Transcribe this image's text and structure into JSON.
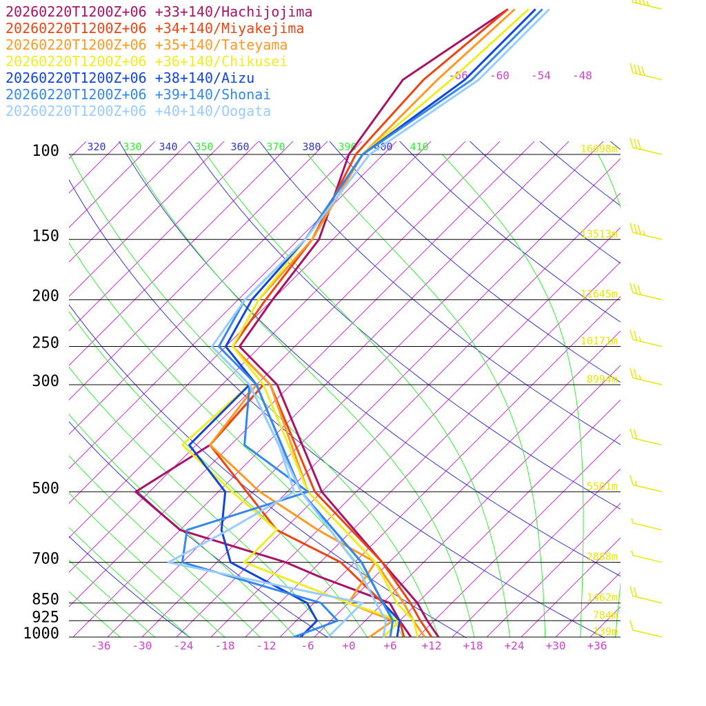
{
  "chart_data": {
    "type": "line",
    "chart_kind": "skew-T log-P diagram",
    "colors": {
      "isobar": "#000000",
      "isotherm": "#cc33cc",
      "dry_adiabat": "#3333cc",
      "moist_adiabat": "#33ee33",
      "height_label": "#e8e800",
      "wind_barb": "#e8e800",
      "temp_axis_label": "#cc44cc",
      "pressure_label": "#000000"
    },
    "pressure_levels": [
      100,
      150,
      200,
      250,
      300,
      500,
      700,
      850,
      925,
      1000
    ],
    "pressure_labels": [
      "100",
      "150",
      "200",
      "250",
      "300",
      "500",
      "700",
      "850",
      "925",
      "1000"
    ],
    "height_labels": [
      "16098m",
      "13513m",
      "11645m",
      "10171m",
      "8994m",
      "5501m",
      "2888m",
      "1462m",
      "784m",
      "139m"
    ],
    "temperature_ticks": [
      "-36",
      "-30",
      "-24",
      "-18",
      "-12",
      "-6",
      "+0",
      "+6",
      "+12",
      "+18",
      "+24",
      "+30",
      "+36"
    ],
    "upper_temperature_labels": [
      "-66",
      "-60",
      "-54",
      "-48"
    ],
    "theta_labels": [
      "320",
      "330",
      "340",
      "350",
      "360",
      "370",
      "380",
      "390",
      "400",
      "410"
    ],
    "series": [
      {
        "name": "20260220T1200Z+06 +33+140/Hachijojima",
        "color": "#aa1166",
        "temperature_c": [
          [
            1000,
            13
          ],
          [
            925,
            9
          ],
          [
            850,
            5
          ],
          [
            700,
            -6
          ],
          [
            500,
            -25
          ],
          [
            300,
            -47
          ],
          [
            250,
            -58
          ],
          [
            200,
            -60
          ],
          [
            150,
            -62
          ],
          [
            100,
            -70
          ],
          [
            70,
            -73
          ],
          [
            50,
            -68
          ]
        ],
        "dewpoint_c": [
          [
            1000,
            9
          ],
          [
            925,
            5
          ],
          [
            850,
            1
          ],
          [
            750,
            -13
          ],
          [
            700,
            -20
          ],
          [
            600,
            -40
          ],
          [
            500,
            -52
          ],
          [
            400,
            -48
          ],
          [
            300,
            -49
          ]
        ]
      },
      {
        "name": "20260220T1200Z+06 +34+140/Miyakejima",
        "color": "#ee4411",
        "temperature_c": [
          [
            1000,
            12
          ],
          [
            925,
            8
          ],
          [
            850,
            4
          ],
          [
            700,
            -6
          ],
          [
            500,
            -26
          ],
          [
            300,
            -48
          ],
          [
            250,
            -59
          ],
          [
            200,
            -61
          ],
          [
            150,
            -63
          ],
          [
            100,
            -69
          ],
          [
            70,
            -70
          ],
          [
            50,
            -68
          ]
        ],
        "dewpoint_c": [
          [
            1000,
            8
          ],
          [
            925,
            5
          ],
          [
            850,
            0
          ],
          [
            700,
            -12
          ],
          [
            600,
            -26
          ],
          [
            400,
            -48
          ],
          [
            300,
            -49
          ]
        ]
      },
      {
        "name": "20260220T1200Z+06 +35+140/Tateyama",
        "color": "#ff9922",
        "temperature_c": [
          [
            1000,
            11
          ],
          [
            925,
            7
          ],
          [
            850,
            3
          ],
          [
            700,
            -7
          ],
          [
            500,
            -27
          ],
          [
            300,
            -48
          ],
          [
            250,
            -59
          ],
          [
            200,
            -62
          ],
          [
            150,
            -63
          ],
          [
            100,
            -68
          ],
          [
            70,
            -68
          ],
          [
            50,
            -67
          ]
        ],
        "dewpoint_c": [
          [
            1000,
            3
          ],
          [
            925,
            4
          ],
          [
            850,
            -5
          ],
          [
            700,
            -7
          ],
          [
            600,
            -20
          ],
          [
            500,
            -34
          ],
          [
            400,
            -48
          ],
          [
            300,
            -50
          ]
        ]
      },
      {
        "name": "20260220T1200Z+06 +36+140/Chikusei",
        "color": "#eeee22",
        "temperature_c": [
          [
            1000,
            10
          ],
          [
            925,
            7
          ],
          [
            850,
            2
          ],
          [
            700,
            -7
          ],
          [
            500,
            -27
          ],
          [
            300,
            -49
          ],
          [
            250,
            -59
          ],
          [
            200,
            -62
          ],
          [
            150,
            -64
          ],
          [
            100,
            -68
          ],
          [
            70,
            -66
          ],
          [
            50,
            -65
          ]
        ],
        "dewpoint_c": [
          [
            1000,
            5
          ],
          [
            925,
            5
          ],
          [
            850,
            -5
          ],
          [
            700,
            -26
          ],
          [
            600,
            -26
          ],
          [
            500,
            -38
          ],
          [
            400,
            -52
          ],
          [
            300,
            -51
          ]
        ]
      },
      {
        "name": "20260220T1200Z+06 +38+140/Aizu",
        "color": "#1144dd",
        "temperature_c": [
          [
            1000,
            7
          ],
          [
            925,
            5
          ],
          [
            850,
            0
          ],
          [
            700,
            -9
          ],
          [
            500,
            -28
          ],
          [
            300,
            -50
          ],
          [
            250,
            -60
          ],
          [
            200,
            -63
          ],
          [
            150,
            -64
          ],
          [
            100,
            -68
          ],
          [
            70,
            -64
          ],
          [
            50,
            -64
          ]
        ],
        "dewpoint_c": [
          [
            1000,
            -7
          ],
          [
            925,
            -7
          ],
          [
            850,
            -11
          ],
          [
            700,
            -28
          ],
          [
            600,
            -34
          ],
          [
            500,
            -39
          ],
          [
            400,
            -51
          ],
          [
            300,
            -51
          ]
        ]
      },
      {
        "name": "20260220T1200Z+06 +39+140/Shonai",
        "color": "#3388ee",
        "temperature_c": [
          [
            1000,
            6
          ],
          [
            925,
            4
          ],
          [
            850,
            0
          ],
          [
            700,
            -9
          ],
          [
            500,
            -28
          ],
          [
            300,
            -50
          ],
          [
            250,
            -61
          ],
          [
            200,
            -64
          ],
          [
            150,
            -64
          ],
          [
            100,
            -68
          ],
          [
            70,
            -63
          ],
          [
            50,
            -63
          ]
        ],
        "dewpoint_c": [
          [
            1000,
            -8
          ],
          [
            925,
            -4
          ],
          [
            850,
            -9
          ],
          [
            700,
            -35
          ],
          [
            600,
            -39
          ],
          [
            500,
            -27
          ],
          [
            400,
            -43
          ],
          [
            300,
            -51
          ]
        ]
      },
      {
        "name": "20260220T1200Z+06 +40+140/Oogata",
        "color": "#99ccff",
        "temperature_c": [
          [
            1000,
            5
          ],
          [
            925,
            3
          ],
          [
            850,
            -1
          ],
          [
            700,
            -10
          ],
          [
            500,
            -28
          ],
          [
            300,
            -51
          ],
          [
            250,
            -62
          ],
          [
            200,
            -64
          ],
          [
            150,
            -64
          ],
          [
            100,
            -67
          ],
          [
            70,
            -62
          ],
          [
            50,
            -62
          ]
        ],
        "dewpoint_c": [
          [
            1000,
            -3
          ],
          [
            925,
            -3
          ],
          [
            850,
            -3
          ],
          [
            700,
            -37
          ],
          [
            600,
            -33
          ],
          [
            500,
            -29
          ],
          [
            400,
            -38
          ],
          [
            300,
            -51
          ]
        ]
      }
    ],
    "wind_barbs": [
      {
        "pressure": 50,
        "speed_kt": 45
      },
      {
        "pressure": 70,
        "speed_kt": 40
      },
      {
        "pressure": 100,
        "speed_kt": 30
      },
      {
        "pressure": 150,
        "speed_kt": 35
      },
      {
        "pressure": 200,
        "speed_kt": 30
      },
      {
        "pressure": 250,
        "speed_kt": 25
      },
      {
        "pressure": 300,
        "speed_kt": 25
      },
      {
        "pressure": 400,
        "speed_kt": 20
      },
      {
        "pressure": 500,
        "speed_kt": 15
      },
      {
        "pressure": 600,
        "speed_kt": 5
      },
      {
        "pressure": 700,
        "speed_kt": 5
      },
      {
        "pressure": 850,
        "speed_kt": 20
      },
      {
        "pressure": 1000,
        "speed_kt": 10
      }
    ]
  }
}
